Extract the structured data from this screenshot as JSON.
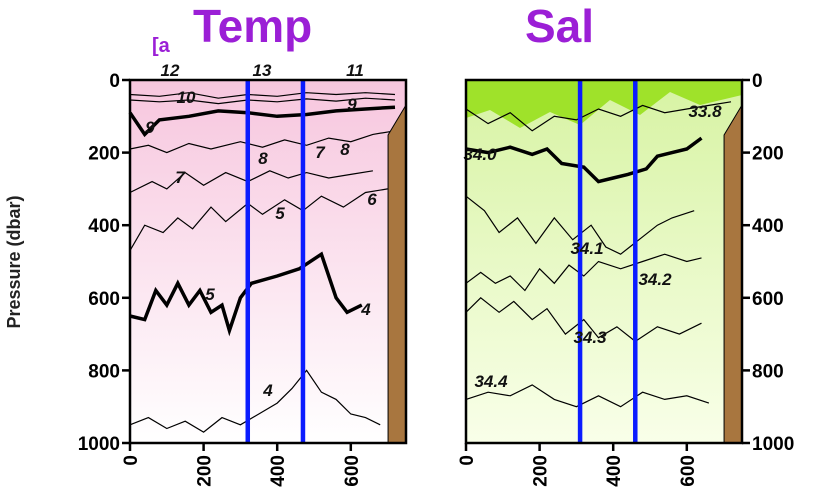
{
  "annotation": "[a",
  "y_axis_label": "Pressure (dbar)",
  "colors": {
    "title": "#9b1fd6",
    "section_line": "#0b1cff",
    "temp_fill_top": "#f7c6de",
    "temp_fill_bottom": "#ffffff",
    "sal_fill_top": "#d7f3a3",
    "sal_fill_bottom": "#f9ffe9",
    "sal_surface_high": "#9fe22a",
    "bathymetry": "#a8763f"
  },
  "chart_data": [
    {
      "type": "contour",
      "title": "Temp",
      "ylabel": "Pressure (dbar)",
      "ylim": [
        1000,
        0
      ],
      "y_ticks": [
        "0",
        "200",
        "400",
        "600",
        "800",
        "1000"
      ],
      "x_ticks": [
        "0",
        "200",
        "400",
        "600"
      ],
      "xlim": [
        0,
        750
      ],
      "contour_labels": [
        "12",
        "13",
        "11",
        "10",
        "9",
        "9",
        "8",
        "8",
        "7",
        "7",
        "6",
        "5",
        "5",
        "4",
        "4"
      ],
      "contours": [
        {
          "level": 11,
          "bold": false,
          "points": [
            [
              0,
              40
            ],
            [
              80,
              45
            ],
            [
              160,
              35
            ],
            [
              240,
              50
            ],
            [
              320,
              40
            ],
            [
              400,
              45
            ],
            [
              480,
              35
            ],
            [
              560,
              40
            ],
            [
              640,
              35
            ],
            [
              720,
              40
            ]
          ]
        },
        {
          "level": 10,
          "bold": false,
          "points": [
            [
              0,
              55
            ],
            [
              80,
              60
            ],
            [
              160,
              55
            ],
            [
              240,
              65
            ],
            [
              320,
              55
            ],
            [
              400,
              60
            ],
            [
              480,
              52
            ],
            [
              560,
              58
            ],
            [
              640,
              50
            ],
            [
              720,
              55
            ]
          ]
        },
        {
          "level": 9,
          "bold": true,
          "points": [
            [
              0,
              90
            ],
            [
              40,
              150
            ],
            [
              80,
              110
            ],
            [
              160,
              100
            ],
            [
              240,
              85
            ],
            [
              320,
              90
            ],
            [
              400,
              100
            ],
            [
              480,
              95
            ],
            [
              560,
              85
            ],
            [
              640,
              80
            ],
            [
              720,
              75
            ]
          ]
        },
        {
          "level": 8,
          "bold": false,
          "points": [
            [
              0,
              190
            ],
            [
              50,
              180
            ],
            [
              100,
              200
            ],
            [
              160,
              175
            ],
            [
              220,
              190
            ],
            [
              300,
              170
            ],
            [
              360,
              185
            ],
            [
              420,
              165
            ],
            [
              480,
              180
            ],
            [
              540,
              160
            ],
            [
              600,
              170
            ],
            [
              660,
              150
            ],
            [
              720,
              140
            ]
          ]
        },
        {
          "level": 7,
          "bold": false,
          "points": [
            [
              0,
              310
            ],
            [
              60,
              280
            ],
            [
              100,
              300
            ],
            [
              150,
              255
            ],
            [
              200,
              290
            ],
            [
              260,
              255
            ],
            [
              320,
              280
            ],
            [
              380,
              250
            ],
            [
              430,
              270
            ],
            [
              480,
              255
            ],
            [
              540,
              270
            ],
            [
              600,
              260
            ],
            [
              660,
              250
            ]
          ]
        },
        {
          "level": 6,
          "bold": false,
          "points": [
            [
              0,
              470
            ],
            [
              40,
              400
            ],
            [
              90,
              420
            ],
            [
              130,
              380
            ],
            [
              170,
              410
            ],
            [
              220,
              350
            ],
            [
              260,
              390
            ],
            [
              320,
              340
            ],
            [
              360,
              370
            ],
            [
              420,
              330
            ],
            [
              470,
              360
            ],
            [
              520,
              320
            ],
            [
              580,
              350
            ],
            [
              640,
              310
            ],
            [
              700,
              300
            ]
          ]
        },
        {
          "level": 5,
          "bold": true,
          "points": [
            [
              0,
              650
            ],
            [
              40,
              660
            ],
            [
              70,
              580
            ],
            [
              100,
              620
            ],
            [
              130,
              560
            ],
            [
              160,
              620
            ],
            [
              190,
              580
            ],
            [
              220,
              640
            ],
            [
              250,
              620
            ],
            [
              270,
              690
            ],
            [
              300,
              600
            ],
            [
              330,
              560
            ],
            [
              400,
              540
            ],
            [
              460,
              520
            ],
            [
              520,
              480
            ],
            [
              560,
              600
            ],
            [
              590,
              640
            ],
            [
              630,
              620
            ]
          ]
        },
        {
          "level": 4,
          "bold": false,
          "points": [
            [
              0,
              950
            ],
            [
              50,
              930
            ],
            [
              100,
              960
            ],
            [
              150,
              940
            ],
            [
              200,
              970
            ],
            [
              250,
              930
            ],
            [
              300,
              950
            ],
            [
              350,
              920
            ],
            [
              400,
              890
            ],
            [
              440,
              850
            ],
            [
              480,
              800
            ],
            [
              520,
              860
            ],
            [
              560,
              880
            ],
            [
              600,
              920
            ],
            [
              640,
              930
            ],
            [
              680,
              950
            ]
          ]
        }
      ],
      "section_lines_x": [
        320,
        470
      ],
      "bathymetry": {
        "start_x": 700,
        "depths_top": [
          [
            700,
            120
          ],
          [
            720,
            90
          ],
          [
            750,
            50
          ]
        ]
      }
    },
    {
      "type": "contour",
      "title": "Sal",
      "ylabel": "",
      "ylim": [
        1000,
        0
      ],
      "y_ticks": [
        "0",
        "200",
        "400",
        "600",
        "800",
        "1000"
      ],
      "x_ticks": [
        "0",
        "200",
        "400",
        "600"
      ],
      "xlim": [
        0,
        750
      ],
      "contour_labels": [
        "33.8",
        "34.0",
        "34.1",
        "34.2",
        "34.3",
        "34.4"
      ],
      "contours": [
        {
          "level": 33.8,
          "bold": false,
          "points": [
            [
              0,
              80
            ],
            [
              60,
              120
            ],
            [
              120,
              90
            ],
            [
              180,
              140
            ],
            [
              240,
              100
            ],
            [
              300,
              110
            ],
            [
              360,
              80
            ],
            [
              420,
              100
            ],
            [
              480,
              70
            ],
            [
              540,
              90
            ],
            [
              600,
              80
            ],
            [
              660,
              70
            ],
            [
              720,
              60
            ]
          ]
        },
        {
          "level": 34.0,
          "bold": true,
          "points": [
            [
              0,
              190
            ],
            [
              60,
              200
            ],
            [
              120,
              185
            ],
            [
              180,
              205
            ],
            [
              220,
              190
            ],
            [
              260,
              230
            ],
            [
              320,
              240
            ],
            [
              360,
              280
            ],
            [
              400,
              270
            ],
            [
              440,
              260
            ],
            [
              490,
              245
            ],
            [
              520,
              210
            ],
            [
              560,
              200
            ],
            [
              600,
              190
            ],
            [
              640,
              160
            ]
          ]
        },
        {
          "level": 34.1,
          "bold": false,
          "points": [
            [
              0,
              320
            ],
            [
              50,
              360
            ],
            [
              90,
              420
            ],
            [
              140,
              380
            ],
            [
              190,
              450
            ],
            [
              240,
              380
            ],
            [
              290,
              440
            ],
            [
              340,
              400
            ],
            [
              380,
              460
            ],
            [
              420,
              480
            ],
            [
              470,
              440
            ],
            [
              520,
              400
            ],
            [
              560,
              380
            ],
            [
              620,
              360
            ]
          ]
        },
        {
          "level": 34.2,
          "bold": false,
          "points": [
            [
              0,
              560
            ],
            [
              40,
              530
            ],
            [
              80,
              560
            ],
            [
              120,
              540
            ],
            [
              160,
              580
            ],
            [
              200,
              520
            ],
            [
              240,
              560
            ],
            [
              280,
              510
            ],
            [
              320,
              540
            ],
            [
              360,
              500
            ],
            [
              420,
              520
            ],
            [
              480,
              500
            ],
            [
              540,
              480
            ],
            [
              600,
              500
            ],
            [
              640,
              490
            ]
          ]
        },
        {
          "level": 34.3,
          "bold": false,
          "points": [
            [
              0,
              640
            ],
            [
              40,
              600
            ],
            [
              90,
              640
            ],
            [
              130,
              610
            ],
            [
              180,
              660
            ],
            [
              220,
              630
            ],
            [
              270,
              700
            ],
            [
              320,
              660
            ],
            [
              360,
              710
            ],
            [
              410,
              680
            ],
            [
              460,
              720
            ],
            [
              520,
              680
            ],
            [
              580,
              700
            ],
            [
              640,
              670
            ]
          ]
        },
        {
          "level": 34.4,
          "bold": false,
          "points": [
            [
              0,
              880
            ],
            [
              60,
              860
            ],
            [
              120,
              870
            ],
            [
              180,
              840
            ],
            [
              240,
              880
            ],
            [
              300,
              900
            ],
            [
              360,
              870
            ],
            [
              420,
              900
            ],
            [
              480,
              860
            ],
            [
              540,
              880
            ],
            [
              600,
              870
            ],
            [
              660,
              890
            ]
          ]
        }
      ],
      "section_lines_x": [
        310,
        460
      ],
      "bathymetry": {
        "start_x": 700,
        "depths_top": [
          [
            700,
            120
          ],
          [
            720,
            90
          ],
          [
            750,
            50
          ]
        ]
      }
    }
  ]
}
